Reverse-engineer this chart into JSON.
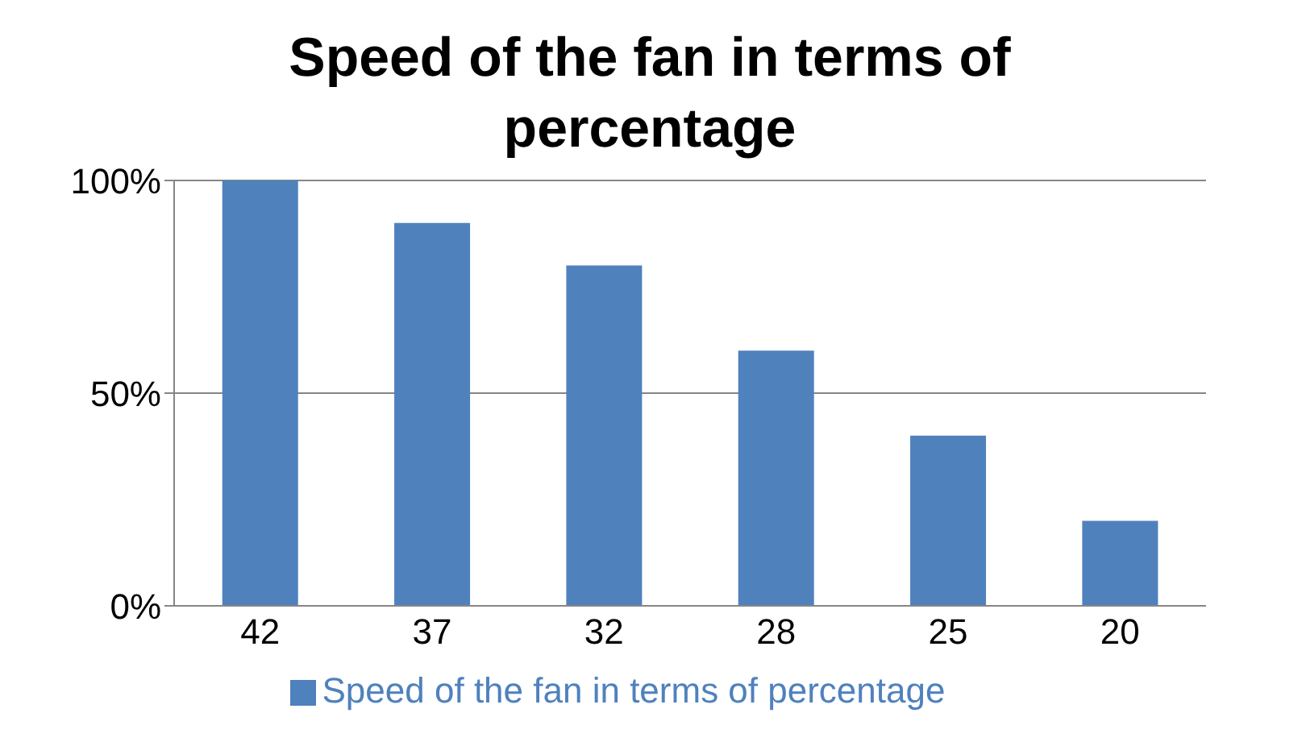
{
  "chart_data": {
    "type": "bar",
    "title": "Speed of the fan in terms of percentage",
    "categories": [
      "42",
      "37",
      "32",
      "28",
      "25",
      "20"
    ],
    "series": [
      {
        "name": "Speed of the fan in terms of percentage",
        "color": "#4f81bd",
        "values": [
          100,
          90,
          80,
          60,
          40,
          20
        ]
      }
    ],
    "ylim": [
      0,
      100
    ],
    "yticks": [
      {
        "value": 0,
        "label": "0%"
      },
      {
        "value": 50,
        "label": "50%"
      },
      {
        "value": 100,
        "label": "100%"
      }
    ],
    "grid": "y",
    "legend": "bottom"
  }
}
